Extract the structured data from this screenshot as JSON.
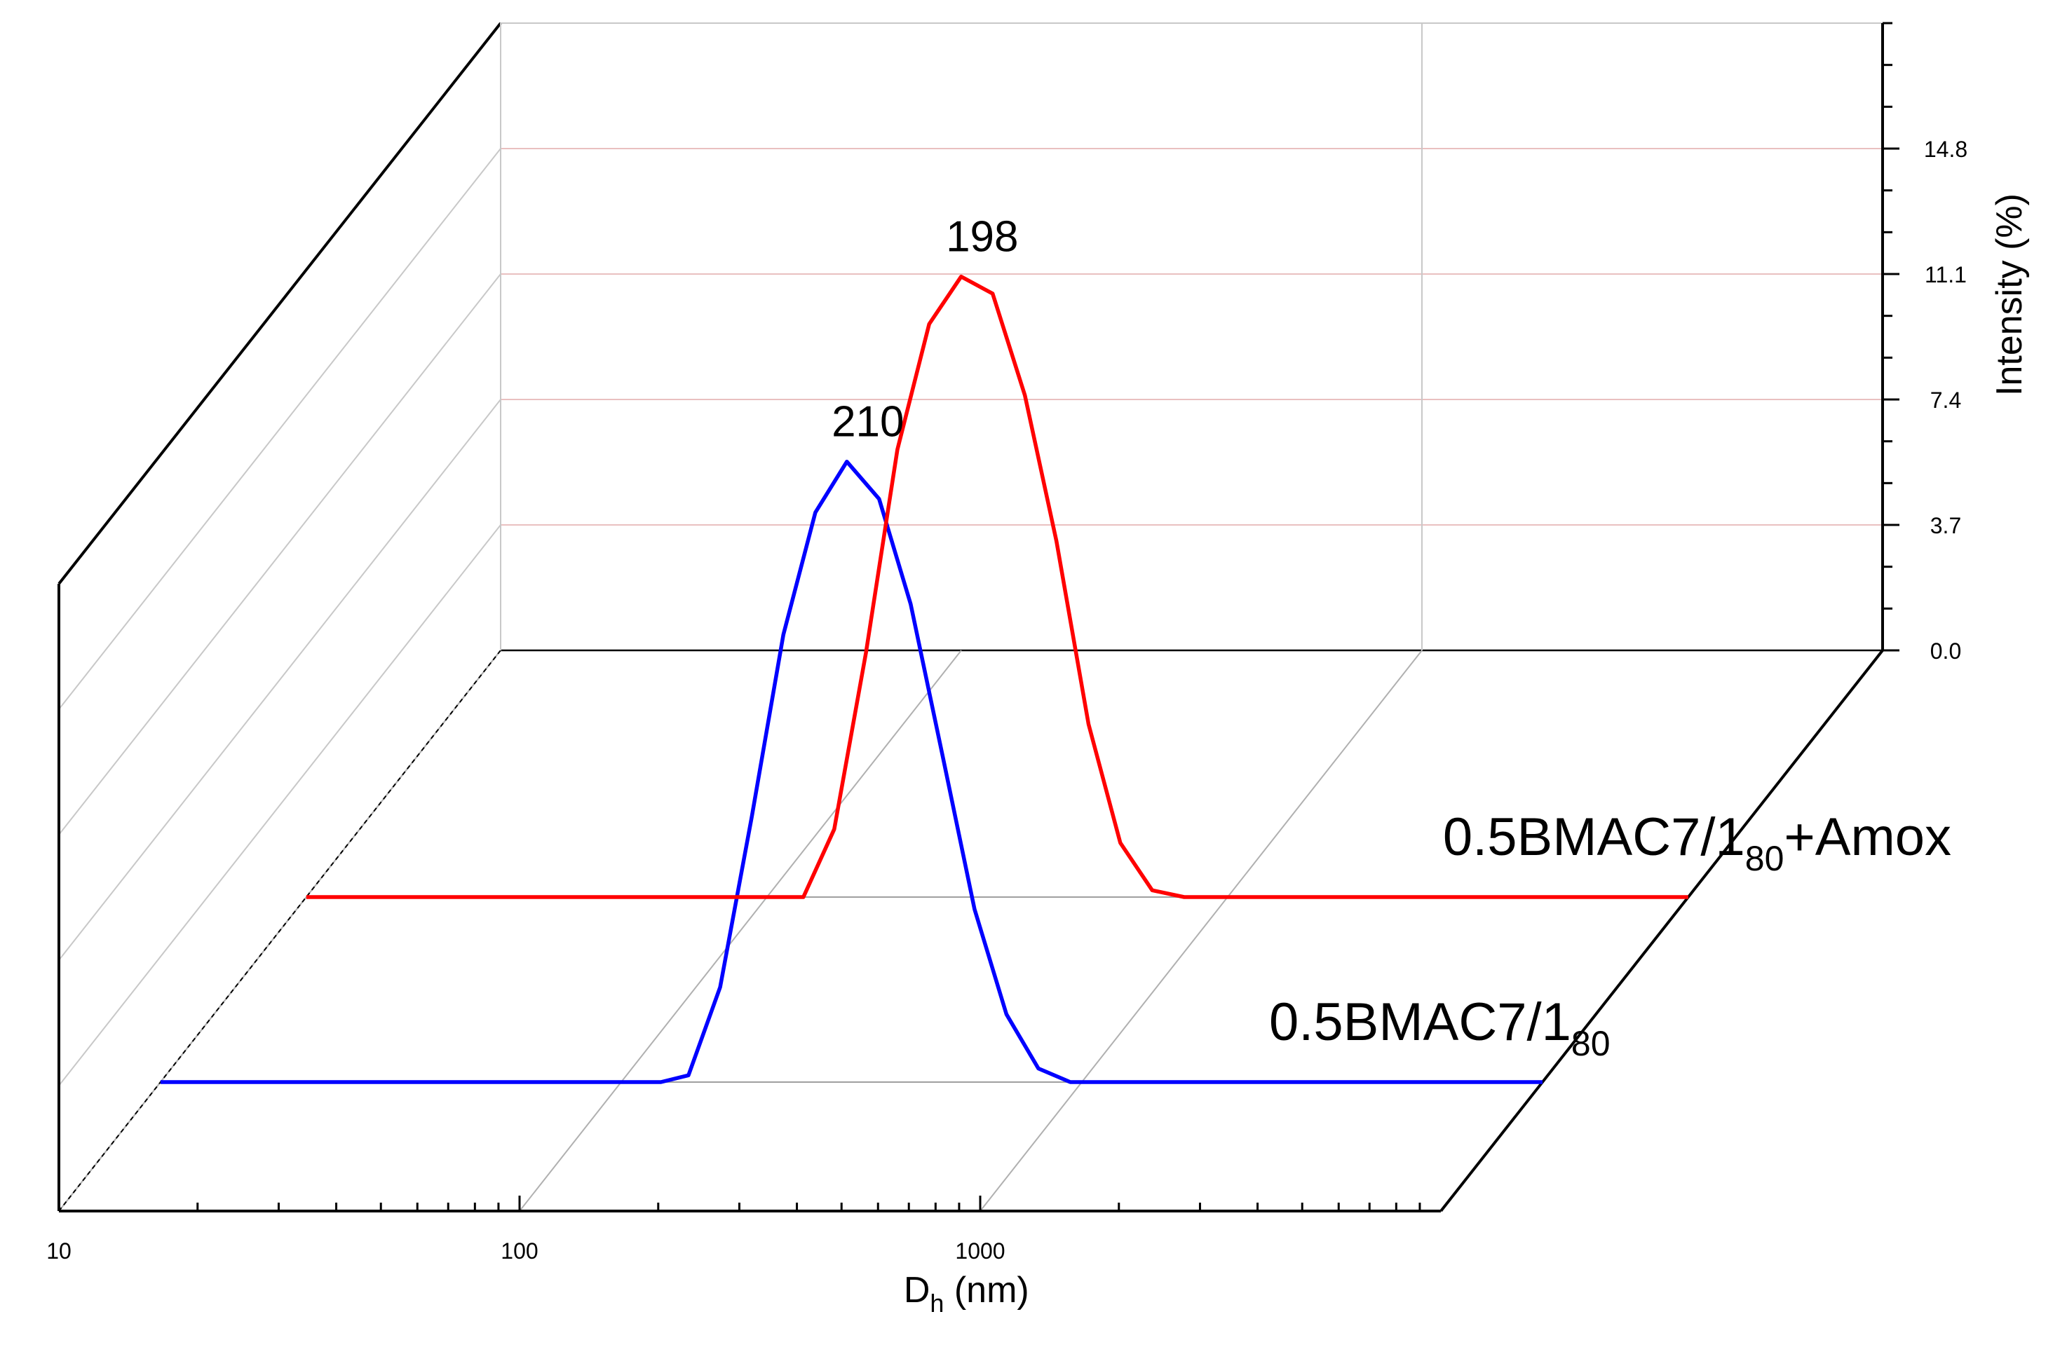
{
  "chart_data": {
    "type": "line",
    "title": "",
    "xlabel": "D",
    "xlabel_sub": "h",
    "xlabel_unit": " (nm)",
    "ylabel": "Intensity (%)",
    "x_scale": "log",
    "xlim": [
      10,
      10000
    ],
    "x_ticks": [
      10,
      100,
      1000
    ],
    "x_tick_labels": [
      "10",
      "100",
      "1000"
    ],
    "ylim": [
      0,
      18.5
    ],
    "y_ticks": [
      0.0,
      3.7,
      7.4,
      11.1,
      14.8
    ],
    "y_tick_labels": [
      "0.0",
      "3.7",
      "7.4",
      "11.1",
      "14.8"
    ],
    "grid": true,
    "series": [
      {
        "name": "0.5BMAC7/1",
        "name_sub": "80",
        "name_suffix": "",
        "color": "#0000ff",
        "peak_label": "210",
        "x": [
          10,
          50,
          122,
          140,
          164,
          192,
          225,
          264,
          309,
          363,
          425,
          499,
          585,
          686,
          805,
          944,
          1107,
          1299,
          1524,
          1787,
          2096,
          2459,
          2884,
          3383,
          3968,
          4654,
          5459,
          6404,
          7512,
          8811,
          10000
        ],
        "y": [
          0,
          0,
          0,
          0.2,
          2.8,
          7.8,
          13.2,
          16.8,
          18.3,
          17.2,
          14.1,
          9.6,
          5.1,
          2.0,
          0.4,
          0,
          0,
          0,
          0,
          0,
          0,
          0,
          0,
          0,
          0,
          0,
          0,
          0,
          0,
          0,
          0
        ]
      },
      {
        "name": "0.5BMAC7/1",
        "name_sub": "80",
        "name_suffix": "+Amox",
        "color": "#ff0000",
        "peak_label": "198",
        "x": [
          10,
          50,
          120,
          140,
          164,
          192,
          225,
          264,
          309,
          363,
          425,
          499,
          585,
          686,
          805,
          944,
          1107,
          1299,
          1524,
          1787,
          2096,
          2459,
          2884,
          3383,
          3968,
          4654,
          5459,
          6404,
          7512,
          8811,
          10000
        ],
        "y": [
          0,
          0,
          0,
          2.0,
          7.2,
          13.2,
          16.9,
          18.3,
          17.8,
          14.8,
          10.5,
          5.1,
          1.6,
          0.2,
          0,
          0,
          0,
          0,
          0,
          0,
          0,
          0,
          0,
          0,
          0,
          0,
          0,
          0,
          0,
          0,
          0
        ]
      }
    ]
  }
}
